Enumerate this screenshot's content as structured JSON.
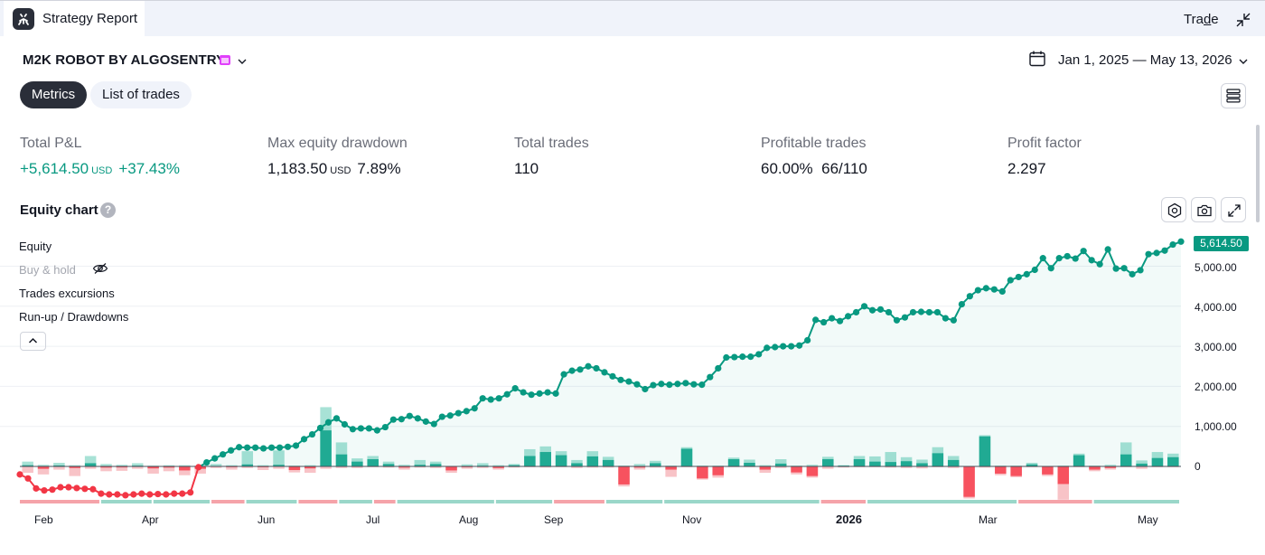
{
  "header": {
    "tab_title": "Strategy Report",
    "trade_link_prefix": "Tra",
    "trade_link_underlined": "d",
    "trade_link_suffix": "e",
    "app_icon": "robot-icon",
    "collapse_icon": "collapse-icon"
  },
  "strategy": {
    "name": "M2K ROBOT BY ALGOSENTRY",
    "date_range": "Jan 1, 2025 — May 13, 2026"
  },
  "tabs": [
    {
      "label": "Metrics",
      "active": true
    },
    {
      "label": "List of trades",
      "active": false
    }
  ],
  "metrics": {
    "total_pnl": {
      "label": "Total P&L",
      "value": "+5,614.50",
      "unit": "USD",
      "percent": "+37.43%"
    },
    "max_drawdown": {
      "label": "Max equity drawdown",
      "value": "1,183.50",
      "unit": "USD",
      "percent": "7.89%"
    },
    "total_trades": {
      "label": "Total trades",
      "value": "110"
    },
    "profitable_trades": {
      "label": "Profitable trades",
      "percent": "60.00%",
      "ratio": "66/110"
    },
    "profit_factor": {
      "label": "Profit factor",
      "value": "2.297"
    }
  },
  "equity_chart": {
    "title": "Equity chart",
    "help": "?",
    "legend": {
      "equity": "Equity",
      "buy_hold": "Buy & hold",
      "excursions": "Trades excursions",
      "runup": "Run-up / Drawdowns"
    },
    "last_value": "5,614.50"
  },
  "colors": {
    "positive": "#089981",
    "negative": "#f23645",
    "dark": "#2a2e39"
  },
  "chart_data": {
    "type": "line",
    "y_ticks": [
      "5,000.00",
      "4,000.00",
      "3,000.00",
      "2,000.00",
      "1,000.00",
      "0"
    ],
    "ylim": [
      -600,
      5800
    ],
    "x_ticks": [
      "Feb",
      "Apr",
      "Jun",
      "Jul",
      "Aug",
      "Sep",
      "Nov",
      "2026",
      "Mar",
      "May"
    ],
    "x_tick_bold": [
      false,
      false,
      false,
      false,
      false,
      false,
      false,
      true,
      false,
      false
    ],
    "series": [
      {
        "name": "Equity",
        "values": [
          -200,
          -300,
          -550,
          -600,
          -580,
          -520,
          -520,
          -540,
          -560,
          -570,
          -680,
          -700,
          -700,
          -720,
          -700,
          -680,
          -700,
          -690,
          -700,
          -680,
          -680,
          -650,
          -20,
          100,
          200,
          300,
          400,
          480,
          470,
          470,
          450,
          470,
          470,
          490,
          520,
          680,
          800,
          960,
          1100,
          1200,
          1050,
          930,
          950,
          950,
          900,
          980,
          1170,
          1180,
          1260,
          1200,
          1120,
          1060,
          1240,
          1270,
          1330,
          1380,
          1450,
          1700,
          1670,
          1700,
          1800,
          1950,
          1850,
          1790,
          1820,
          1850,
          1820,
          2300,
          2390,
          2420,
          2500,
          2450,
          2350,
          2250,
          2160,
          2120,
          2050,
          1930,
          2030,
          2060,
          2040,
          2060,
          2080,
          2050,
          2040,
          2230,
          2450,
          2720,
          2730,
          2740,
          2740,
          2800,
          2960,
          2980,
          3000,
          3000,
          3020,
          3150,
          3660,
          3600,
          3700,
          3630,
          3750,
          3850,
          4000,
          3900,
          3920,
          3850,
          3650,
          3720,
          3850,
          3860,
          3850,
          3850,
          3700,
          3650,
          4050,
          4250,
          4400,
          4450,
          4420,
          4370,
          4650,
          4730,
          4800,
          4910,
          5200,
          4950,
          5200,
          5250,
          5190,
          5380,
          5150,
          5050,
          5420,
          4940,
          4950,
          4800,
          4900,
          5300,
          5330,
          5390,
          5540,
          5614.5
        ]
      }
    ],
    "excursions": [
      {
        "v": 30,
        "r": 120,
        "d": -160
      },
      {
        "v": -60,
        "r": 40,
        "d": -200
      },
      {
        "v": 25,
        "r": 90,
        "d": -80
      },
      {
        "v": -40,
        "r": 30,
        "d": -240
      },
      {
        "v": 80,
        "r": 260,
        "d": -60
      },
      {
        "v": -30,
        "r": 60,
        "d": -120
      },
      {
        "v": -25,
        "r": 40,
        "d": -110
      },
      {
        "v": 20,
        "r": 80,
        "d": -60
      },
      {
        "v": -50,
        "r": 20,
        "d": -180
      },
      {
        "v": -30,
        "r": 30,
        "d": -120
      },
      {
        "v": -100,
        "r": 30,
        "d": -220
      },
      {
        "v": -60,
        "r": 20,
        "d": -180
      },
      {
        "v": 10,
        "r": 60,
        "d": -40
      },
      {
        "v": -20,
        "r": 30,
        "d": -80
      },
      {
        "v": 50,
        "r": 380,
        "d": -40
      },
      {
        "v": -20,
        "r": 30,
        "d": -90
      },
      {
        "v": 40,
        "r": 400,
        "d": -60
      },
      {
        "v": -90,
        "r": 20,
        "d": -150
      },
      {
        "v": -50,
        "r": 30,
        "d": -160
      },
      {
        "v": 900,
        "r": 1480,
        "d": -60
      },
      {
        "v": 300,
        "r": 600,
        "d": -40
      },
      {
        "v": 120,
        "r": 200,
        "d": -40
      },
      {
        "v": 180,
        "r": 260,
        "d": -20
      },
      {
        "v": 60,
        "r": 120,
        "d": -30
      },
      {
        "v": -30,
        "r": 40,
        "d": -80
      },
      {
        "v": 40,
        "r": 160,
        "d": -30
      },
      {
        "v": 60,
        "r": 120,
        "d": -40
      },
      {
        "v": -100,
        "r": 10,
        "d": -160
      },
      {
        "v": -20,
        "r": 50,
        "d": -60
      },
      {
        "v": 20,
        "r": 80,
        "d": -40
      },
      {
        "v": -40,
        "r": 30,
        "d": -80
      },
      {
        "v": 30,
        "r": 60,
        "d": -30
      },
      {
        "v": 260,
        "r": 430,
        "d": -20
      },
      {
        "v": 360,
        "r": 500,
        "d": -30
      },
      {
        "v": 280,
        "r": 380,
        "d": -20
      },
      {
        "v": 80,
        "r": 160,
        "d": -40
      },
      {
        "v": 250,
        "r": 380,
        "d": -30
      },
      {
        "v": 160,
        "r": 240,
        "d": -30
      },
      {
        "v": -450,
        "r": 20,
        "d": -500
      },
      {
        "v": -30,
        "r": 60,
        "d": -80
      },
      {
        "v": 80,
        "r": 140,
        "d": -30
      },
      {
        "v": -80,
        "r": 20,
        "d": -260
      },
      {
        "v": 440,
        "r": 480,
        "d": -20
      },
      {
        "v": -300,
        "r": 20,
        "d": -330
      },
      {
        "v": -220,
        "r": 20,
        "d": -280
      },
      {
        "v": 180,
        "r": 220,
        "d": -20
      },
      {
        "v": 90,
        "r": 170,
        "d": -20
      },
      {
        "v": -80,
        "r": 30,
        "d": -160
      },
      {
        "v": 70,
        "r": 180,
        "d": -40
      },
      {
        "v": -150,
        "r": 20,
        "d": -200
      },
      {
        "v": -240,
        "r": 40,
        "d": -280
      },
      {
        "v": 180,
        "r": 240,
        "d": -60
      },
      {
        "v": 20,
        "r": 30,
        "d": -30
      },
      {
        "v": 180,
        "r": 260,
        "d": -20
      },
      {
        "v": 120,
        "r": 250,
        "d": -20
      },
      {
        "v": 110,
        "r": 360,
        "d": -30
      },
      {
        "v": 130,
        "r": 230,
        "d": -40
      },
      {
        "v": 80,
        "r": 170,
        "d": -50
      },
      {
        "v": 330,
        "r": 480,
        "d": -20
      },
      {
        "v": 160,
        "r": 260,
        "d": -40
      },
      {
        "v": -760,
        "r": 10,
        "d": -800
      },
      {
        "v": 750,
        "r": 780,
        "d": -30
      },
      {
        "v": -180,
        "r": 20,
        "d": -220
      },
      {
        "v": -240,
        "r": 20,
        "d": -270
      },
      {
        "v": 50,
        "r": 90,
        "d": -20
      },
      {
        "v": -200,
        "r": 10,
        "d": -240
      },
      {
        "v": -440,
        "r": 20,
        "d": -830
      },
      {
        "v": 280,
        "r": 320,
        "d": -20
      },
      {
        "v": -80,
        "r": 20,
        "d": -120
      },
      {
        "v": -40,
        "r": 40,
        "d": -80
      },
      {
        "v": 300,
        "r": 600,
        "d": -20
      },
      {
        "v": 70,
        "r": 150,
        "d": -60
      },
      {
        "v": 210,
        "r": 360,
        "d": -20
      },
      {
        "v": 230,
        "r": 320,
        "d": -20
      }
    ],
    "runup_bands": [
      {
        "from": 0,
        "to": 0.07,
        "kind": "negative"
      },
      {
        "from": 0.07,
        "to": 0.115,
        "kind": "positive"
      },
      {
        "from": 0.115,
        "to": 0.165,
        "kind": "positive"
      },
      {
        "from": 0.165,
        "to": 0.195,
        "kind": "negative"
      },
      {
        "from": 0.195,
        "to": 0.24,
        "kind": "positive"
      },
      {
        "from": 0.24,
        "to": 0.275,
        "kind": "negative"
      },
      {
        "from": 0.275,
        "to": 0.305,
        "kind": "positive"
      },
      {
        "from": 0.305,
        "to": 0.325,
        "kind": "negative"
      },
      {
        "from": 0.325,
        "to": 0.41,
        "kind": "positive"
      },
      {
        "from": 0.41,
        "to": 0.46,
        "kind": "positive"
      },
      {
        "from": 0.46,
        "to": 0.505,
        "kind": "negative"
      },
      {
        "from": 0.505,
        "to": 0.555,
        "kind": "positive"
      },
      {
        "from": 0.555,
        "to": 0.69,
        "kind": "positive"
      },
      {
        "from": 0.69,
        "to": 0.73,
        "kind": "negative"
      },
      {
        "from": 0.73,
        "to": 0.86,
        "kind": "positive"
      },
      {
        "from": 0.86,
        "to": 0.925,
        "kind": "negative"
      },
      {
        "from": 0.925,
        "to": 1.0,
        "kind": "positive"
      }
    ]
  }
}
